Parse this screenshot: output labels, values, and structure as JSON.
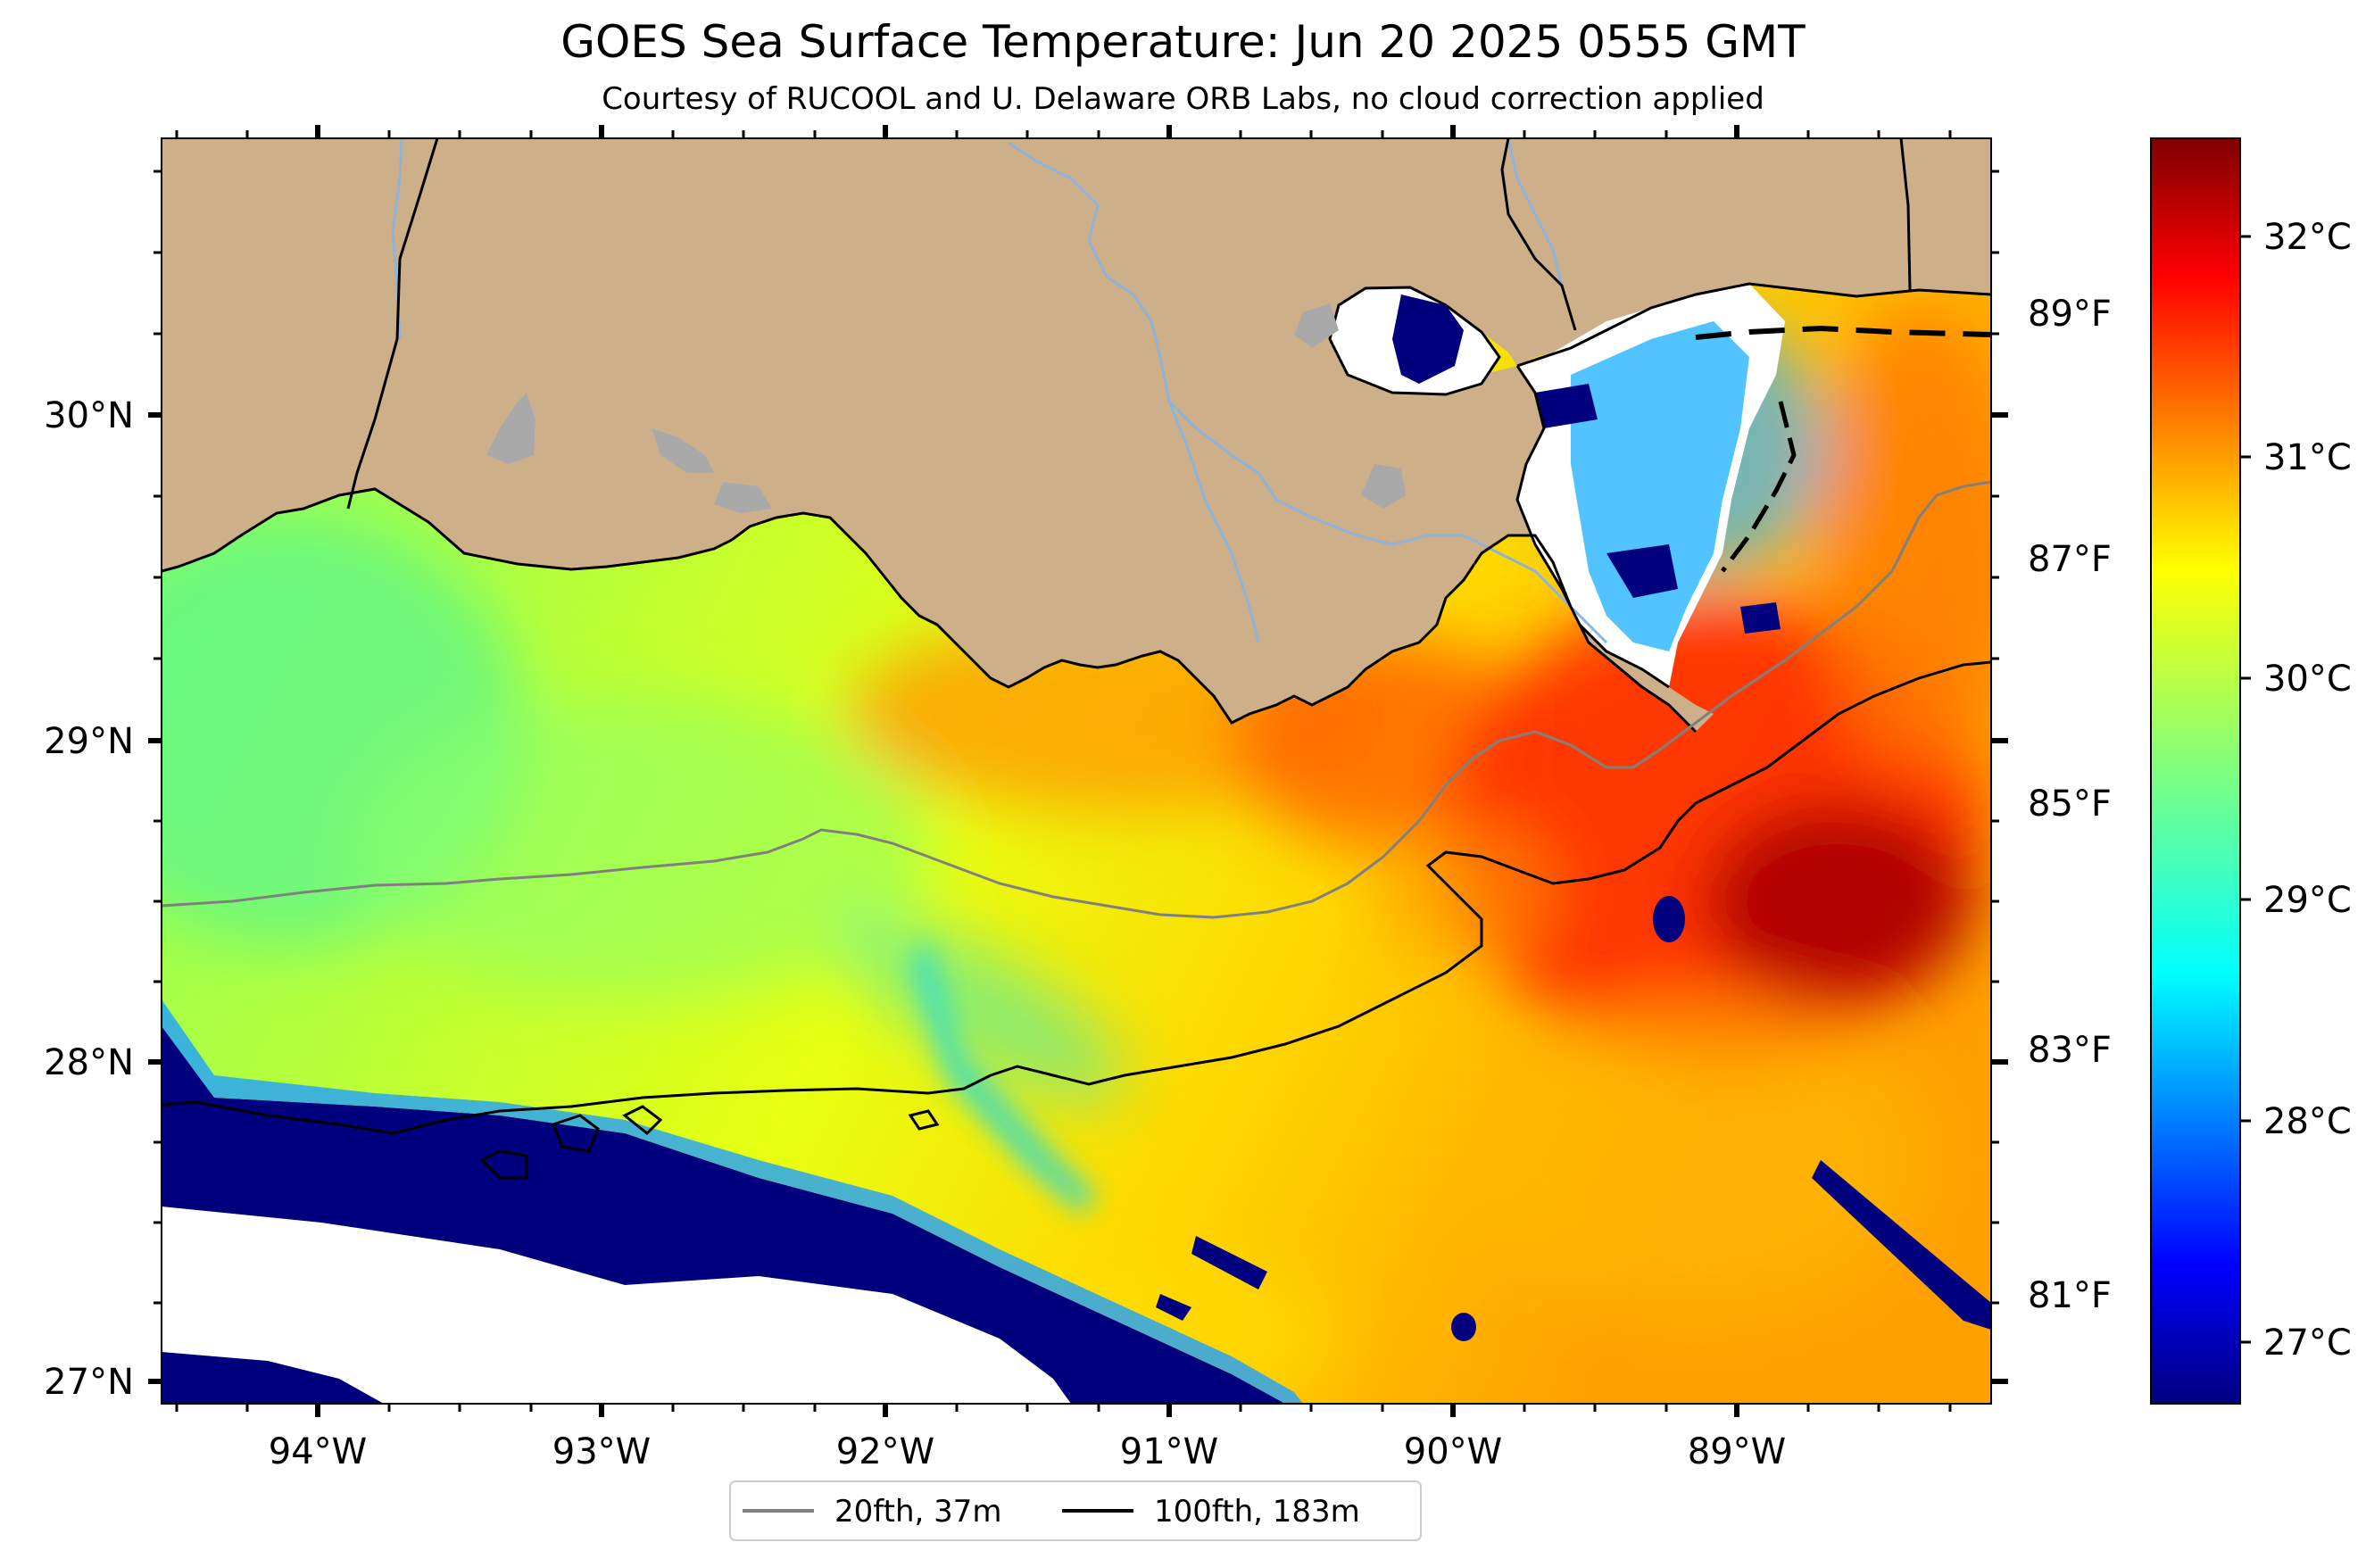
{
  "title": "GOES Sea Surface Temperature: Jun 20 2025 0555 GMT",
  "subtitle": "Courtesy of RUCOOL and U. Delaware ORB Labs, no cloud correction applied",
  "map": {
    "lon_ticks": [
      "94°W",
      "93°W",
      "92°W",
      "91°W",
      "90°W",
      "89°W"
    ],
    "lat_ticks": [
      "30°N",
      "29°N",
      "28°N",
      "27°N"
    ],
    "colors": {
      "land": "#cdb08a",
      "inland_water": "#a9a9a9",
      "river": "#8fb4d9",
      "nodata": "#ffffff",
      "isobath_20": "#808080",
      "isobath_100": "#000000"
    }
  },
  "colorbar": {
    "celsius_labels": [
      "32°C",
      "31°C",
      "30°C",
      "29°C",
      "28°C",
      "27°C"
    ],
    "fahrenheit_labels": [
      "89°F",
      "87°F",
      "85°F",
      "83°F",
      "81°F"
    ],
    "colormap": "jet"
  },
  "legend": {
    "items": [
      {
        "label": "20fth, 37m",
        "color": "#808080"
      },
      {
        "label": "100fth, 183m",
        "color": "#000000"
      }
    ]
  }
}
